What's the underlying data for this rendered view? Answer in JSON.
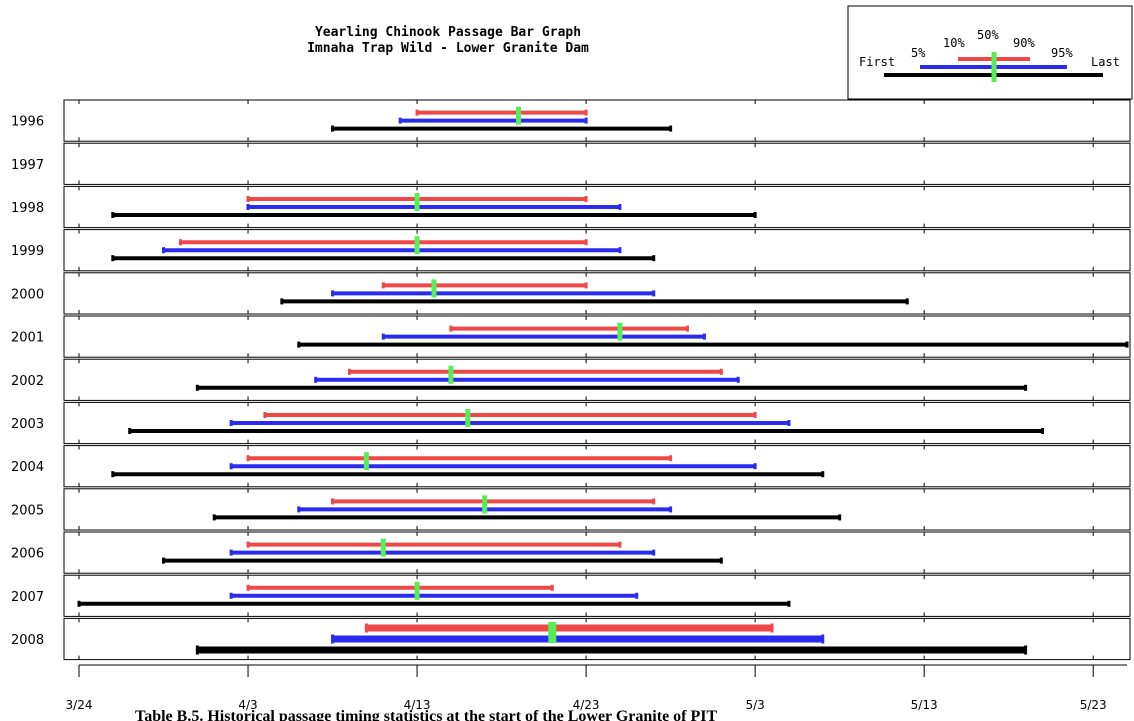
{
  "chart_data": {
    "type": "range-bar",
    "title_lines": [
      "Yearling Chinook Passage Bar Graph",
      "Imnaha Trap Wild - Lower Granite Dam"
    ],
    "x_tick_labels": [
      "3/24",
      "4/3",
      "4/13",
      "4/23",
      "5/3",
      "5/13",
      "5/23"
    ],
    "x_tick_days": [
      0,
      10,
      20,
      30,
      40,
      50,
      60
    ],
    "xlim_days": [
      0,
      62
    ],
    "x_origin_date": "3/24",
    "legend": {
      "labels": [
        "First",
        "5%",
        "10%",
        "50%",
        "90%",
        "95%",
        "Last"
      ],
      "position": "top-right"
    },
    "colors": {
      "first_last": "#000000",
      "pct_5_95": "#2b2bf0",
      "pct_10_90": "#f04848",
      "median": "#55ee55",
      "highlight_year": "#f04848"
    },
    "highlight_year": "2008",
    "rows": [
      {
        "year": "1996",
        "first": 15,
        "p5": 19,
        "p10": 20,
        "p50": 26,
        "p90": 30,
        "p95": 30,
        "last": 35
      },
      {
        "year": "1997",
        "first": null,
        "p5": null,
        "p10": null,
        "p50": null,
        "p90": null,
        "p95": null,
        "last": null
      },
      {
        "year": "1998",
        "first": 2,
        "p5": 10,
        "p10": 10,
        "p50": 20,
        "p90": 30,
        "p95": 32,
        "last": 40
      },
      {
        "year": "1999",
        "first": 2,
        "p5": 5,
        "p10": 6,
        "p50": 20,
        "p90": 30,
        "p95": 32,
        "last": 34
      },
      {
        "year": "2000",
        "first": 12,
        "p5": 15,
        "p10": 18,
        "p50": 21,
        "p90": 30,
        "p95": 34,
        "last": 49
      },
      {
        "year": "2001",
        "first": 13,
        "p5": 18,
        "p10": 22,
        "p50": 32,
        "p90": 36,
        "p95": 37,
        "last": 62
      },
      {
        "year": "2002",
        "first": 7,
        "p5": 14,
        "p10": 16,
        "p50": 22,
        "p90": 38,
        "p95": 39,
        "last": 56
      },
      {
        "year": "2003",
        "first": 3,
        "p5": 9,
        "p10": 11,
        "p50": 23,
        "p90": 40,
        "p95": 42,
        "last": 57
      },
      {
        "year": "2004",
        "first": 2,
        "p5": 9,
        "p10": 10,
        "p50": 17,
        "p90": 35,
        "p95": 40,
        "last": 44
      },
      {
        "year": "2005",
        "first": 8,
        "p5": 13,
        "p10": 15,
        "p50": 24,
        "p90": 34,
        "p95": 35,
        "last": 45
      },
      {
        "year": "2006",
        "first": 5,
        "p5": 9,
        "p10": 10,
        "p50": 18,
        "p90": 32,
        "p95": 34,
        "last": 38
      },
      {
        "year": "2007",
        "first": 0,
        "p5": 9,
        "p10": 10,
        "p50": 20,
        "p90": 28,
        "p95": 33,
        "last": 42
      },
      {
        "year": "2008",
        "first": 7,
        "p5": 15,
        "p10": 17,
        "p50": 28,
        "p90": 41,
        "p95": 44,
        "last": 56
      }
    ],
    "grid": false
  }
}
